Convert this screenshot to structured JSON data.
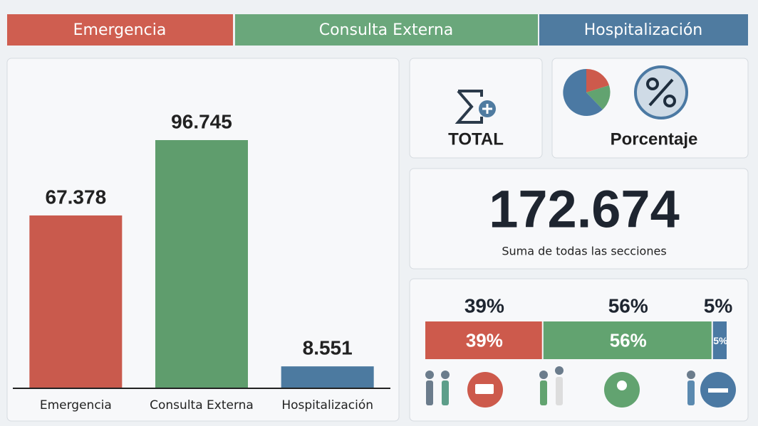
{
  "tabs": [
    "Emergencia",
    "Consulta Externa",
    "Hospitalización"
  ],
  "chart_data": [
    {
      "type": "bar",
      "categories": [
        "Emergencia",
        "Consulta Externa",
        "Hospitalización"
      ],
      "values": [
        67378,
        96745,
        8551
      ],
      "value_labels": [
        "67.378",
        "96.745",
        "8.551"
      ],
      "colors": [
        "#c95a4d",
        "#5f9d6d",
        "#4c7aa0"
      ]
    },
    {
      "type": "stacked-percent",
      "values": [
        39,
        56,
        5
      ],
      "value_labels": [
        "39%",
        "56%",
        "5%"
      ],
      "colors": [
        "#cd5a4c",
        "#62a370",
        "#4b79a3"
      ]
    }
  ],
  "total_card": {
    "title": "TOTAL",
    "value": 172674,
    "value_label": "172.674",
    "caption": "Suma de todas las secciones"
  },
  "percent_card": {
    "title": "Porcentaje"
  }
}
